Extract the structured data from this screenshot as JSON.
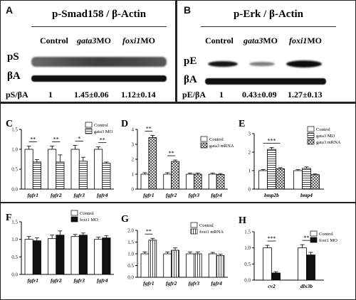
{
  "panels": {
    "A": {
      "label": "A",
      "title": "p-Smad158 / β-Actin",
      "columns": [
        "Control",
        "gata3MO",
        "foxi1MO"
      ],
      "column_parts": [
        [
          "Control",
          ""
        ],
        [
          "gata3",
          "MO"
        ],
        [
          "foxi1",
          "MO"
        ]
      ],
      "row_labels": [
        "pS",
        "βA"
      ],
      "ratio_label": "pS/βA",
      "ratios": [
        "1",
        "1.45±0.06",
        "1.12±0.14"
      ]
    },
    "B": {
      "label": "B",
      "title": "p-Erk / β-Actin",
      "columns": [
        "Control",
        "gata3MO",
        "foxi1MO"
      ],
      "column_parts": [
        [
          "Control",
          ""
        ],
        [
          "gata3",
          "MO"
        ],
        [
          "foxi1",
          "MO"
        ]
      ],
      "row_labels": [
        "pE",
        "βA"
      ],
      "ratio_label": "pE/βA",
      "ratios": [
        "1",
        "0.43±0.09",
        "1.27±0.13"
      ]
    }
  },
  "chart_data": [
    {
      "panel": "C",
      "type": "bar",
      "categories": [
        "fgfr1",
        "fgfr2",
        "fgfr3",
        "fgfr4"
      ],
      "series": [
        {
          "name": "Control",
          "values": [
            1.0,
            1.0,
            1.0,
            1.0
          ],
          "errors": [
            0.08,
            0.08,
            0.1,
            0.06
          ]
        },
        {
          "name": "gata3 MO",
          "values": [
            0.68,
            0.68,
            0.7,
            0.65
          ],
          "errors": [
            0.06,
            0.18,
            0.1,
            0.03
          ]
        }
      ],
      "ylim": [
        0,
        1.5
      ],
      "yticks": [
        "0.0",
        "0.5",
        "1.0",
        "1.5"
      ],
      "significance": [
        "**",
        "**",
        "*",
        "**"
      ],
      "legend_position": "top-right"
    },
    {
      "panel": "D",
      "type": "bar",
      "categories": [
        "fgfr1",
        "fgfr2",
        "fgfr3",
        "fgfr4"
      ],
      "series": [
        {
          "name": "Control",
          "values": [
            1.0,
            1.0,
            1.0,
            1.0
          ],
          "errors": [
            0.1,
            0.1,
            0.08,
            0.08
          ]
        },
        {
          "name": "gata3 mRNA",
          "values": [
            3.45,
            1.85,
            1.0,
            0.98
          ],
          "errors": [
            0.15,
            0.1,
            0.08,
            0.06
          ]
        }
      ],
      "ylim": [
        0,
        4
      ],
      "yticks": [
        "0",
        "1",
        "2",
        "3",
        "4"
      ],
      "significance": [
        "**",
        "**",
        "",
        ""
      ],
      "legend_position": "top-right"
    },
    {
      "panel": "E",
      "type": "bar",
      "categories": [
        "bmp2b",
        "bmp4"
      ],
      "series": [
        {
          "name": "Control",
          "values": [
            1.0,
            1.0
          ],
          "errors": [
            0.06,
            0.06
          ]
        },
        {
          "name": "gata3 MO",
          "values": [
            2.15,
            1.12
          ],
          "errors": [
            0.1,
            0.08
          ]
        },
        {
          "name": "gata3 mRNA",
          "values": [
            1.1,
            0.78
          ],
          "errors": [
            0.06,
            0.04
          ]
        }
      ],
      "ylim": [
        0,
        3
      ],
      "yticks": [
        "0",
        "1",
        "2",
        "3"
      ],
      "significance": [
        "***",
        ""
      ],
      "legend_position": "top-right"
    },
    {
      "panel": "F",
      "type": "bar",
      "categories": [
        "fgfr1",
        "fgfr2",
        "fgfr3",
        "fgfr4"
      ],
      "series": [
        {
          "name": "Control",
          "values": [
            1.0,
            1.02,
            1.08,
            1.0
          ],
          "errors": [
            0.08,
            0.1,
            0.06,
            0.06
          ]
        },
        {
          "name": "foxi1 MO",
          "values": [
            0.96,
            1.12,
            1.12,
            1.04
          ],
          "errors": [
            0.08,
            0.12,
            0.06,
            0.06
          ]
        }
      ],
      "ylim": [
        0,
        1.5
      ],
      "yticks": [
        "0.0",
        "0.5",
        "1.0",
        "1.5"
      ],
      "significance": [
        "",
        "",
        "",
        ""
      ],
      "legend_position": "top-right"
    },
    {
      "panel": "G",
      "type": "bar",
      "categories": [
        "fgfr1",
        "fgfr2",
        "fgfr3",
        "fgfr4"
      ],
      "series": [
        {
          "name": "Control",
          "values": [
            1.0,
            1.0,
            1.0,
            1.0
          ],
          "errors": [
            0.08,
            0.08,
            0.08,
            0.06
          ]
        },
        {
          "name": "foxi1 mRNA",
          "values": [
            1.58,
            1.15,
            1.0,
            0.92
          ],
          "errors": [
            0.08,
            0.1,
            0.08,
            0.06
          ]
        }
      ],
      "ylim": [
        0,
        2.0
      ],
      "yticks": [
        "0.0",
        "0.5",
        "1.0",
        "1.5",
        "2.0"
      ],
      "significance": [
        "**",
        "",
        "",
        ""
      ],
      "legend_position": "top-right"
    },
    {
      "panel": "H",
      "type": "bar",
      "categories": [
        "cv2",
        "dlx3b"
      ],
      "series": [
        {
          "name": "Control",
          "values": [
            1.0,
            1.0
          ],
          "errors": [
            0.08,
            0.1
          ]
        },
        {
          "name": "foxi1 MO",
          "values": [
            0.22,
            0.78
          ],
          "errors": [
            0.04,
            0.08
          ]
        }
      ],
      "ylim": [
        0,
        1.5
      ],
      "yticks": [
        "0.0",
        "0.5",
        "1.0",
        "1.5"
      ],
      "significance": [
        "***",
        "**"
      ],
      "legend_position": "top-right"
    }
  ]
}
